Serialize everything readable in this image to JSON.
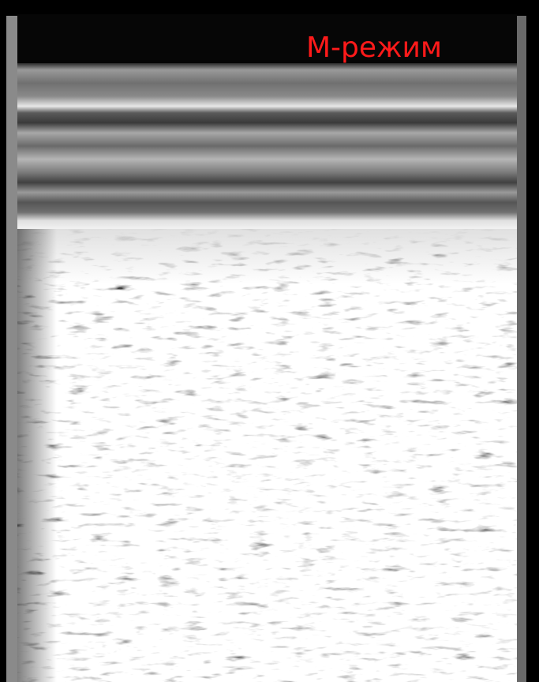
{
  "label": "М-режим"
}
